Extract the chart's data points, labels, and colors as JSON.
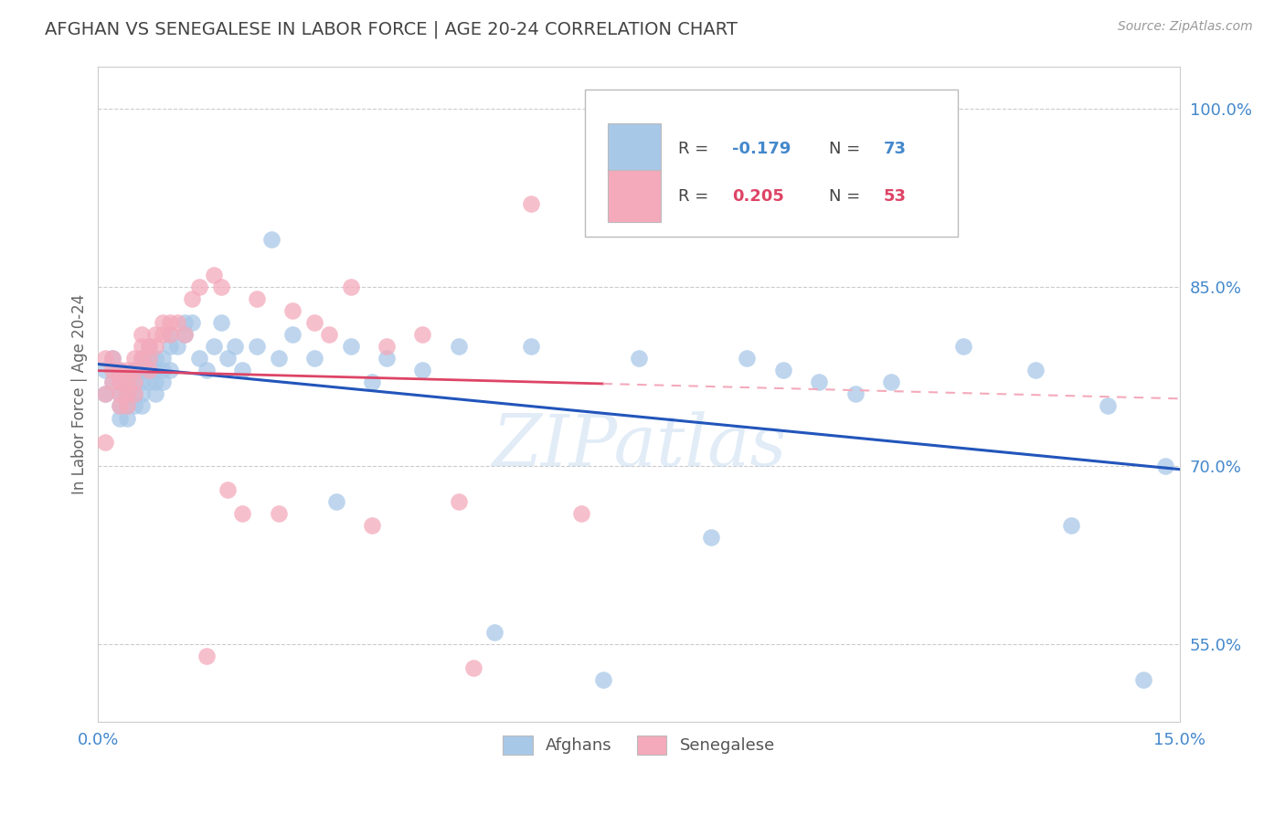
{
  "title": "AFGHAN VS SENEGALESE IN LABOR FORCE | AGE 20-24 CORRELATION CHART",
  "source": "Source: ZipAtlas.com",
  "ylabel": "In Labor Force | Age 20-24",
  "xlim": [
    0.0,
    0.15
  ],
  "ylim": [
    0.485,
    1.035
  ],
  "blue_color": "#A8C8E8",
  "pink_color": "#F4AABB",
  "trend_blue_color": "#2255BB",
  "trend_pink_solid_color": "#DD4466",
  "trend_pink_dash_color": "#F4AABB",
  "watermark": "ZIPatlas",
  "background_color": "#ffffff",
  "title_color": "#444444",
  "source_color": "#999999",
  "grid_color": "#cccccc",
  "tick_label_color": "#4488cc",
  "afghans_x": [
    0.001,
    0.001,
    0.002,
    0.002,
    0.003,
    0.003,
    0.003,
    0.003,
    0.004,
    0.004,
    0.004,
    0.004,
    0.005,
    0.005,
    0.005,
    0.005,
    0.006,
    0.006,
    0.006,
    0.006,
    0.006,
    0.007,
    0.007,
    0.007,
    0.007,
    0.008,
    0.008,
    0.008,
    0.008,
    0.009,
    0.009,
    0.009,
    0.01,
    0.01,
    0.01,
    0.011,
    0.012,
    0.012,
    0.013,
    0.014,
    0.015,
    0.016,
    0.017,
    0.018,
    0.019,
    0.02,
    0.022,
    0.024,
    0.025,
    0.027,
    0.03,
    0.033,
    0.035,
    0.038,
    0.04,
    0.045,
    0.05,
    0.055,
    0.06,
    0.07,
    0.075,
    0.085,
    0.09,
    0.095,
    0.1,
    0.105,
    0.11,
    0.12,
    0.13,
    0.135,
    0.14,
    0.145,
    0.148
  ],
  "afghans_y": [
    0.78,
    0.76,
    0.79,
    0.77,
    0.78,
    0.76,
    0.75,
    0.74,
    0.77,
    0.76,
    0.75,
    0.74,
    0.78,
    0.77,
    0.76,
    0.75,
    0.79,
    0.78,
    0.77,
    0.76,
    0.75,
    0.8,
    0.79,
    0.78,
    0.77,
    0.79,
    0.78,
    0.77,
    0.76,
    0.79,
    0.78,
    0.77,
    0.81,
    0.8,
    0.78,
    0.8,
    0.82,
    0.81,
    0.82,
    0.79,
    0.78,
    0.8,
    0.82,
    0.79,
    0.8,
    0.78,
    0.8,
    0.89,
    0.79,
    0.81,
    0.79,
    0.67,
    0.8,
    0.77,
    0.79,
    0.78,
    0.8,
    0.56,
    0.8,
    0.52,
    0.79,
    0.64,
    0.79,
    0.78,
    0.77,
    0.76,
    0.77,
    0.8,
    0.78,
    0.65,
    0.75,
    0.52,
    0.7
  ],
  "senegalese_x": [
    0.001,
    0.001,
    0.001,
    0.002,
    0.002,
    0.002,
    0.003,
    0.003,
    0.003,
    0.003,
    0.004,
    0.004,
    0.004,
    0.004,
    0.005,
    0.005,
    0.005,
    0.005,
    0.006,
    0.006,
    0.006,
    0.007,
    0.007,
    0.007,
    0.008,
    0.008,
    0.009,
    0.009,
    0.01,
    0.01,
    0.011,
    0.012,
    0.013,
    0.014,
    0.015,
    0.016,
    0.017,
    0.018,
    0.02,
    0.022,
    0.025,
    0.027,
    0.03,
    0.032,
    0.035,
    0.038,
    0.04,
    0.045,
    0.05,
    0.052,
    0.06,
    0.067,
    0.07
  ],
  "senegalese_y": [
    0.79,
    0.76,
    0.72,
    0.79,
    0.78,
    0.77,
    0.78,
    0.77,
    0.76,
    0.75,
    0.78,
    0.77,
    0.76,
    0.75,
    0.79,
    0.78,
    0.77,
    0.76,
    0.81,
    0.8,
    0.79,
    0.8,
    0.79,
    0.78,
    0.81,
    0.8,
    0.82,
    0.81,
    0.82,
    0.81,
    0.82,
    0.81,
    0.84,
    0.85,
    0.54,
    0.86,
    0.85,
    0.68,
    0.66,
    0.84,
    0.66,
    0.83,
    0.82,
    0.81,
    0.85,
    0.65,
    0.8,
    0.81,
    0.67,
    0.53,
    0.92,
    0.66,
    0.96
  ],
  "ytick_vals": [
    0.55,
    0.7,
    0.85,
    1.0
  ],
  "ytick_labels": [
    "55.0%",
    "70.0%",
    "85.0%",
    "100.0%"
  ],
  "xtick_vals": [
    0.0,
    0.15
  ],
  "xtick_labels": [
    "0.0%",
    "15.0%"
  ]
}
